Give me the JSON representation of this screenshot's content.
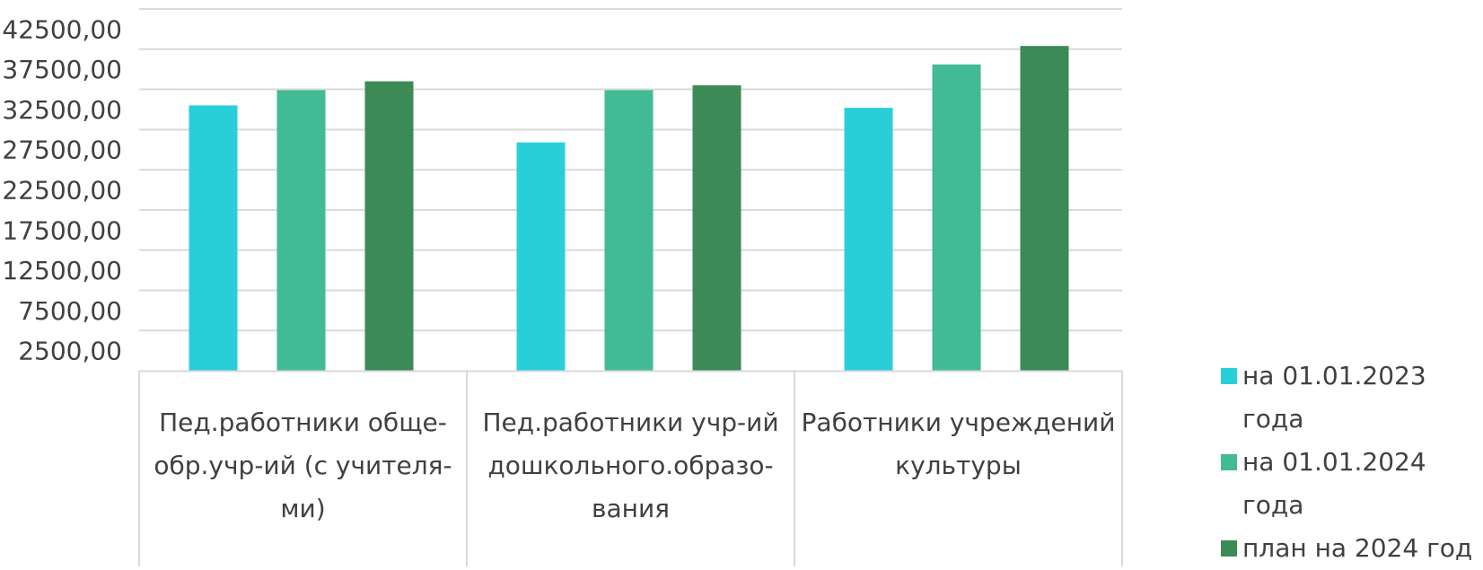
{
  "chart_data": {
    "type": "bar",
    "title": "",
    "xlabel": "",
    "ylabel": "",
    "ylim": [
      0,
      45000
    ],
    "y_ticks": [
      "2500,00",
      "7500,00",
      "12500,00",
      "17500,00",
      "22500,00",
      "27500,00",
      "32500,00",
      "37500,00",
      "42500,00"
    ],
    "categories": [
      "Пед.работники обще-обр.учр-ий (с учителя-ми)",
      "Пед.работники учр-ий дошкольного.образо-вания",
      "Работники учреждений культуры"
    ],
    "series": [
      {
        "name": "на 01.01.2023 года",
        "color": "#29CFD8",
        "values": [
          33000,
          28400,
          32700
        ]
      },
      {
        "name": "на 01.01.2024 года",
        "color": "#42BA96",
        "values": [
          34900,
          34900,
          38100
        ]
      },
      {
        "name": "план на 2024 год",
        "color": "#3C8A56",
        "values": [
          36000,
          35500,
          40400
        ]
      }
    ],
    "grid": true,
    "legend_position": "right"
  }
}
